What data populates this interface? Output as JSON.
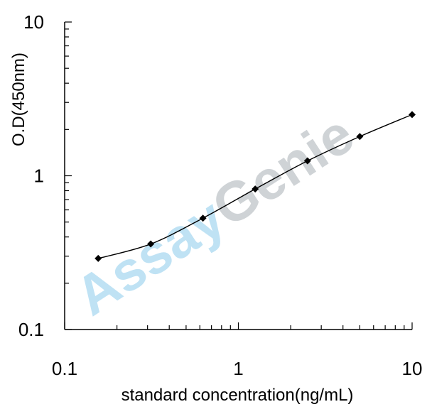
{
  "chart_data": {
    "type": "line",
    "xscale": "log",
    "yscale": "log",
    "xlim": [
      0.1,
      10
    ],
    "ylim": [
      0.1,
      10
    ],
    "xlabel": "standard concentration(ng/mL)",
    "ylabel": "O.D(450nm)",
    "x_tick_labels": [
      "0.1",
      "1",
      "10"
    ],
    "y_tick_labels": [
      "0.1",
      "1",
      "10"
    ],
    "grid": false,
    "series": [
      {
        "x": [
          0.156,
          0.313,
          0.625,
          1.25,
          2.5,
          5,
          10
        ],
        "y": [
          0.29,
          0.36,
          0.53,
          0.82,
          1.25,
          1.8,
          2.5
        ],
        "marker": "diamond"
      }
    ],
    "colors": {
      "line": "#000000",
      "marker": "#000000"
    }
  },
  "watermark": {
    "text_main": "Assay",
    "text_accent": "Genie",
    "color_main": "#a9d8f0",
    "color_accent": "#c3c8cc"
  }
}
